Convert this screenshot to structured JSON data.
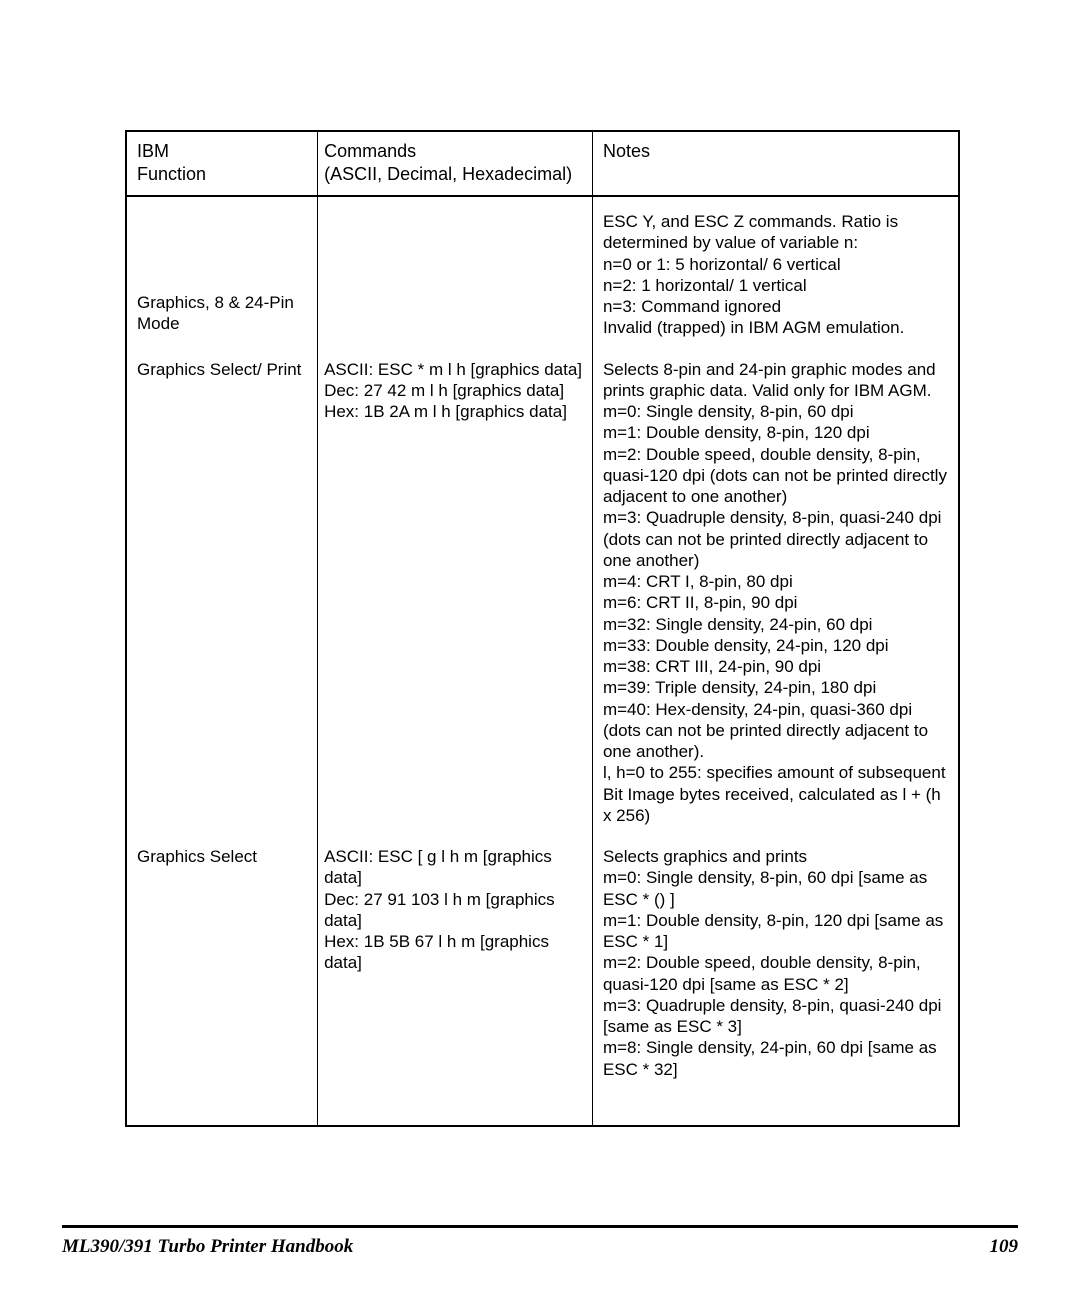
{
  "table": {
    "headers": {
      "function": "IBM\nFunction",
      "commands": "Commands\n(ASCII, Decimal, Hexadecimal)",
      "notes": "Notes"
    },
    "rows": [
      {
        "function": "Graphics, 8 & 24-Pin Mode",
        "commands": "",
        "notes": "ESC Y, and ESC Z commands. Ratio is determined by value of variable n:\nn=0 or 1: 5 horizontal/ 6 vertical\nn=2: 1 horizontal/ 1 vertical\nn=3: Command ignored\nInvalid (trapped) in IBM AGM emulation."
      },
      {
        "function": "Graphics Select/ Print",
        "commands": "ASCII: ESC * m l h [graphics data]\nDec: 27 42 m l h [graphics data]\nHex: 1B 2A m l h [graphics data]",
        "notes": "Selects 8-pin and 24-pin graphic modes and prints graphic data. Valid only for IBM AGM.\nm=0: Single density, 8-pin, 60 dpi\nm=1: Double density, 8-pin, 120 dpi\nm=2: Double speed, double density, 8-pin, quasi-120 dpi (dots can not be printed directly adjacent to one another)\nm=3: Quadruple density, 8-pin, quasi-240 dpi (dots can not be printed directly adjacent to one another)\nm=4: CRT I, 8-pin, 80 dpi\nm=6: CRT II, 8-pin, 90 dpi\nm=32: Single density, 24-pin, 60 dpi\nm=33: Double density, 24-pin, 120 dpi\nm=38: CRT III, 24-pin, 90 dpi\nm=39: Triple density, 24-pin, 180 dpi\nm=40: Hex-density, 24-pin, quasi-360 dpi (dots can not be printed directly adjacent to one another).\nl, h=0 to 255: specifies amount of subsequent Bit Image bytes received, calculated as l + (h x 256)"
      },
      {
        "function": "Graphics Select",
        "commands": "ASCII: ESC [ g l h m [graphics data]\nDec: 27 91 103 l h m [graphics data]\nHex: 1B 5B 67 l h m [graphics data]",
        "notes": "Selects graphics and prints\nm=0: Single density, 8-pin, 60 dpi [same as ESC * () ]\nm=1: Double density, 8-pin, 120 dpi [same as ESC * 1]\nm=2: Double speed, double density, 8-pin, quasi-120 dpi [same as ESC * 2]\nm=3: Quadruple density, 8-pin, quasi-240 dpi [same as ESC * 3]\nm=8: Single density, 24-pin, 60 dpi [same as ESC * 32]"
      }
    ]
  },
  "footer": {
    "title": "ML390/391 Turbo Printer Handbook",
    "page": "109"
  },
  "style": {
    "border_color": "#000000",
    "text_color": "#000000",
    "background_color": "#ffffff",
    "body_font": "Arial, Helvetica, sans-serif",
    "footer_font": "Times New Roman, serif",
    "cell_fontsize": 17,
    "header_fontsize": 18,
    "footer_fontsize": 19
  }
}
